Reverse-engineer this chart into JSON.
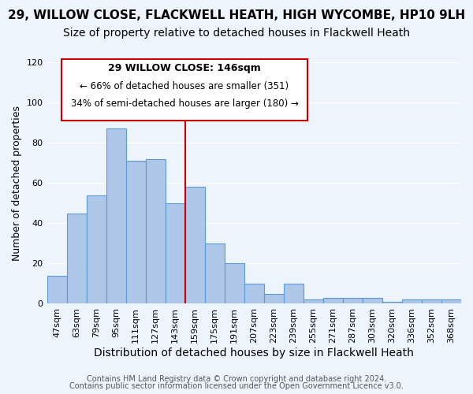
{
  "title": "29, WILLOW CLOSE, FLACKWELL HEATH, HIGH WYCOMBE, HP10 9LH",
  "subtitle": "Size of property relative to detached houses in Flackwell Heath",
  "xlabel": "Distribution of detached houses by size in Flackwell Heath",
  "ylabel": "Number of detached properties",
  "bar_color": "#aec6e8",
  "bar_edge_color": "#5b9bd5",
  "categories": [
    "47sqm",
    "63sqm",
    "79sqm",
    "95sqm",
    "111sqm",
    "127sqm",
    "143sqm",
    "159sqm",
    "175sqm",
    "191sqm",
    "207sqm",
    "223sqm",
    "239sqm",
    "255sqm",
    "271sqm",
    "287sqm",
    "303sqm",
    "320sqm",
    "336sqm",
    "352sqm",
    "368sqm"
  ],
  "values": [
    14,
    45,
    54,
    87,
    71,
    72,
    50,
    58,
    30,
    20,
    10,
    5,
    10,
    2,
    3,
    3,
    3,
    1,
    2,
    2,
    2
  ],
  "ylim": [
    0,
    120
  ],
  "yticks": [
    0,
    20,
    40,
    60,
    80,
    100,
    120
  ],
  "vline_color": "#cc0000",
  "annotation_title": "29 WILLOW CLOSE: 146sqm",
  "annotation_line1": "← 66% of detached houses are smaller (351)",
  "annotation_line2": "34% of semi-detached houses are larger (180) →",
  "annotation_box_color": "#ffffff",
  "annotation_box_edge_color": "#cc0000",
  "footer1": "Contains HM Land Registry data © Crown copyright and database right 2024.",
  "footer2": "Contains public sector information licensed under the Open Government Licence v3.0.",
  "background_color": "#eef4fb",
  "grid_color": "#ffffff",
  "title_fontsize": 11,
  "subtitle_fontsize": 10,
  "xlabel_fontsize": 10,
  "ylabel_fontsize": 9,
  "tick_fontsize": 8,
  "footer_fontsize": 7
}
